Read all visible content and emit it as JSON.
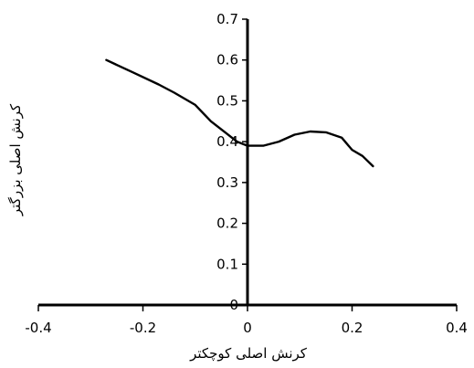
{
  "chart_data": {
    "type": "line",
    "title": "",
    "xlabel": "کرنش اصلی کوچکتر",
    "ylabel": "کرنش اصلی بزرگتر",
    "xlim": [
      -0.4,
      0.4
    ],
    "ylim": [
      0,
      0.7
    ],
    "x_ticks": [
      "-0.4",
      "-0.2",
      "0",
      "0.2",
      "0.4"
    ],
    "y_ticks": [
      "0",
      "0.1",
      "0.2",
      "0.3",
      "0.4",
      "0.5",
      "0.6",
      "0.7"
    ],
    "grid": false,
    "legend": "none",
    "series": [
      {
        "color": "#000000",
        "points": [
          [
            -0.27,
            0.6
          ],
          [
            -0.22,
            0.57
          ],
          [
            -0.17,
            0.54
          ],
          [
            -0.14,
            0.52
          ],
          [
            -0.1,
            0.49
          ],
          [
            -0.07,
            0.45
          ],
          [
            -0.04,
            0.42
          ],
          [
            -0.02,
            0.4
          ],
          [
            0.0,
            0.39
          ],
          [
            0.03,
            0.39
          ],
          [
            0.06,
            0.4
          ],
          [
            0.09,
            0.417
          ],
          [
            0.12,
            0.425
          ],
          [
            0.15,
            0.423
          ],
          [
            0.18,
            0.41
          ],
          [
            0.2,
            0.38
          ],
          [
            0.22,
            0.365
          ],
          [
            0.24,
            0.34
          ]
        ]
      }
    ]
  }
}
